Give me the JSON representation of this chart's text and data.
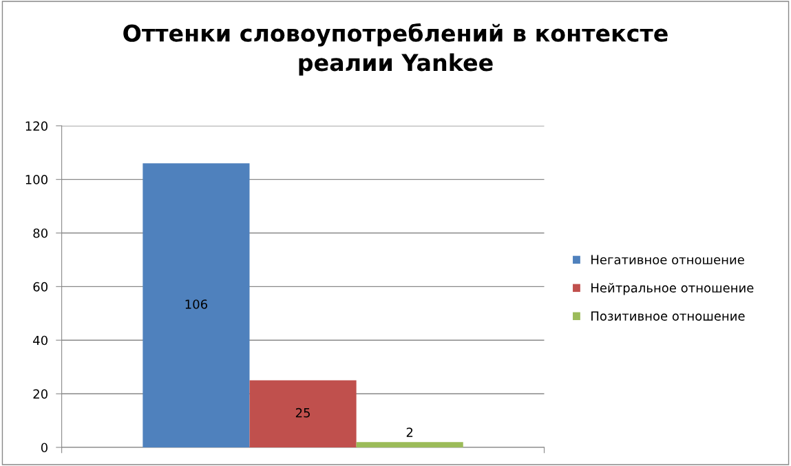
{
  "chart_data": {
    "type": "bar",
    "title": "Оттенки словоупотреблений в контексте\nреалии Yankee",
    "categories": [
      null
    ],
    "series": [
      {
        "name": "Негативное отношение",
        "color": "#4f81bd",
        "values": [
          106
        ]
      },
      {
        "name": "Нейтральное отношение",
        "color": "#c0504d",
        "values": [
          25
        ]
      },
      {
        "name": "Позитивное отношение",
        "color": "#9bbb59",
        "values": [
          2
        ]
      }
    ],
    "ylim": [
      0,
      120
    ],
    "yticks": [
      0,
      20,
      40,
      60,
      80,
      100,
      120
    ],
    "grid": "y",
    "legend": "right",
    "data_labels": true
  }
}
